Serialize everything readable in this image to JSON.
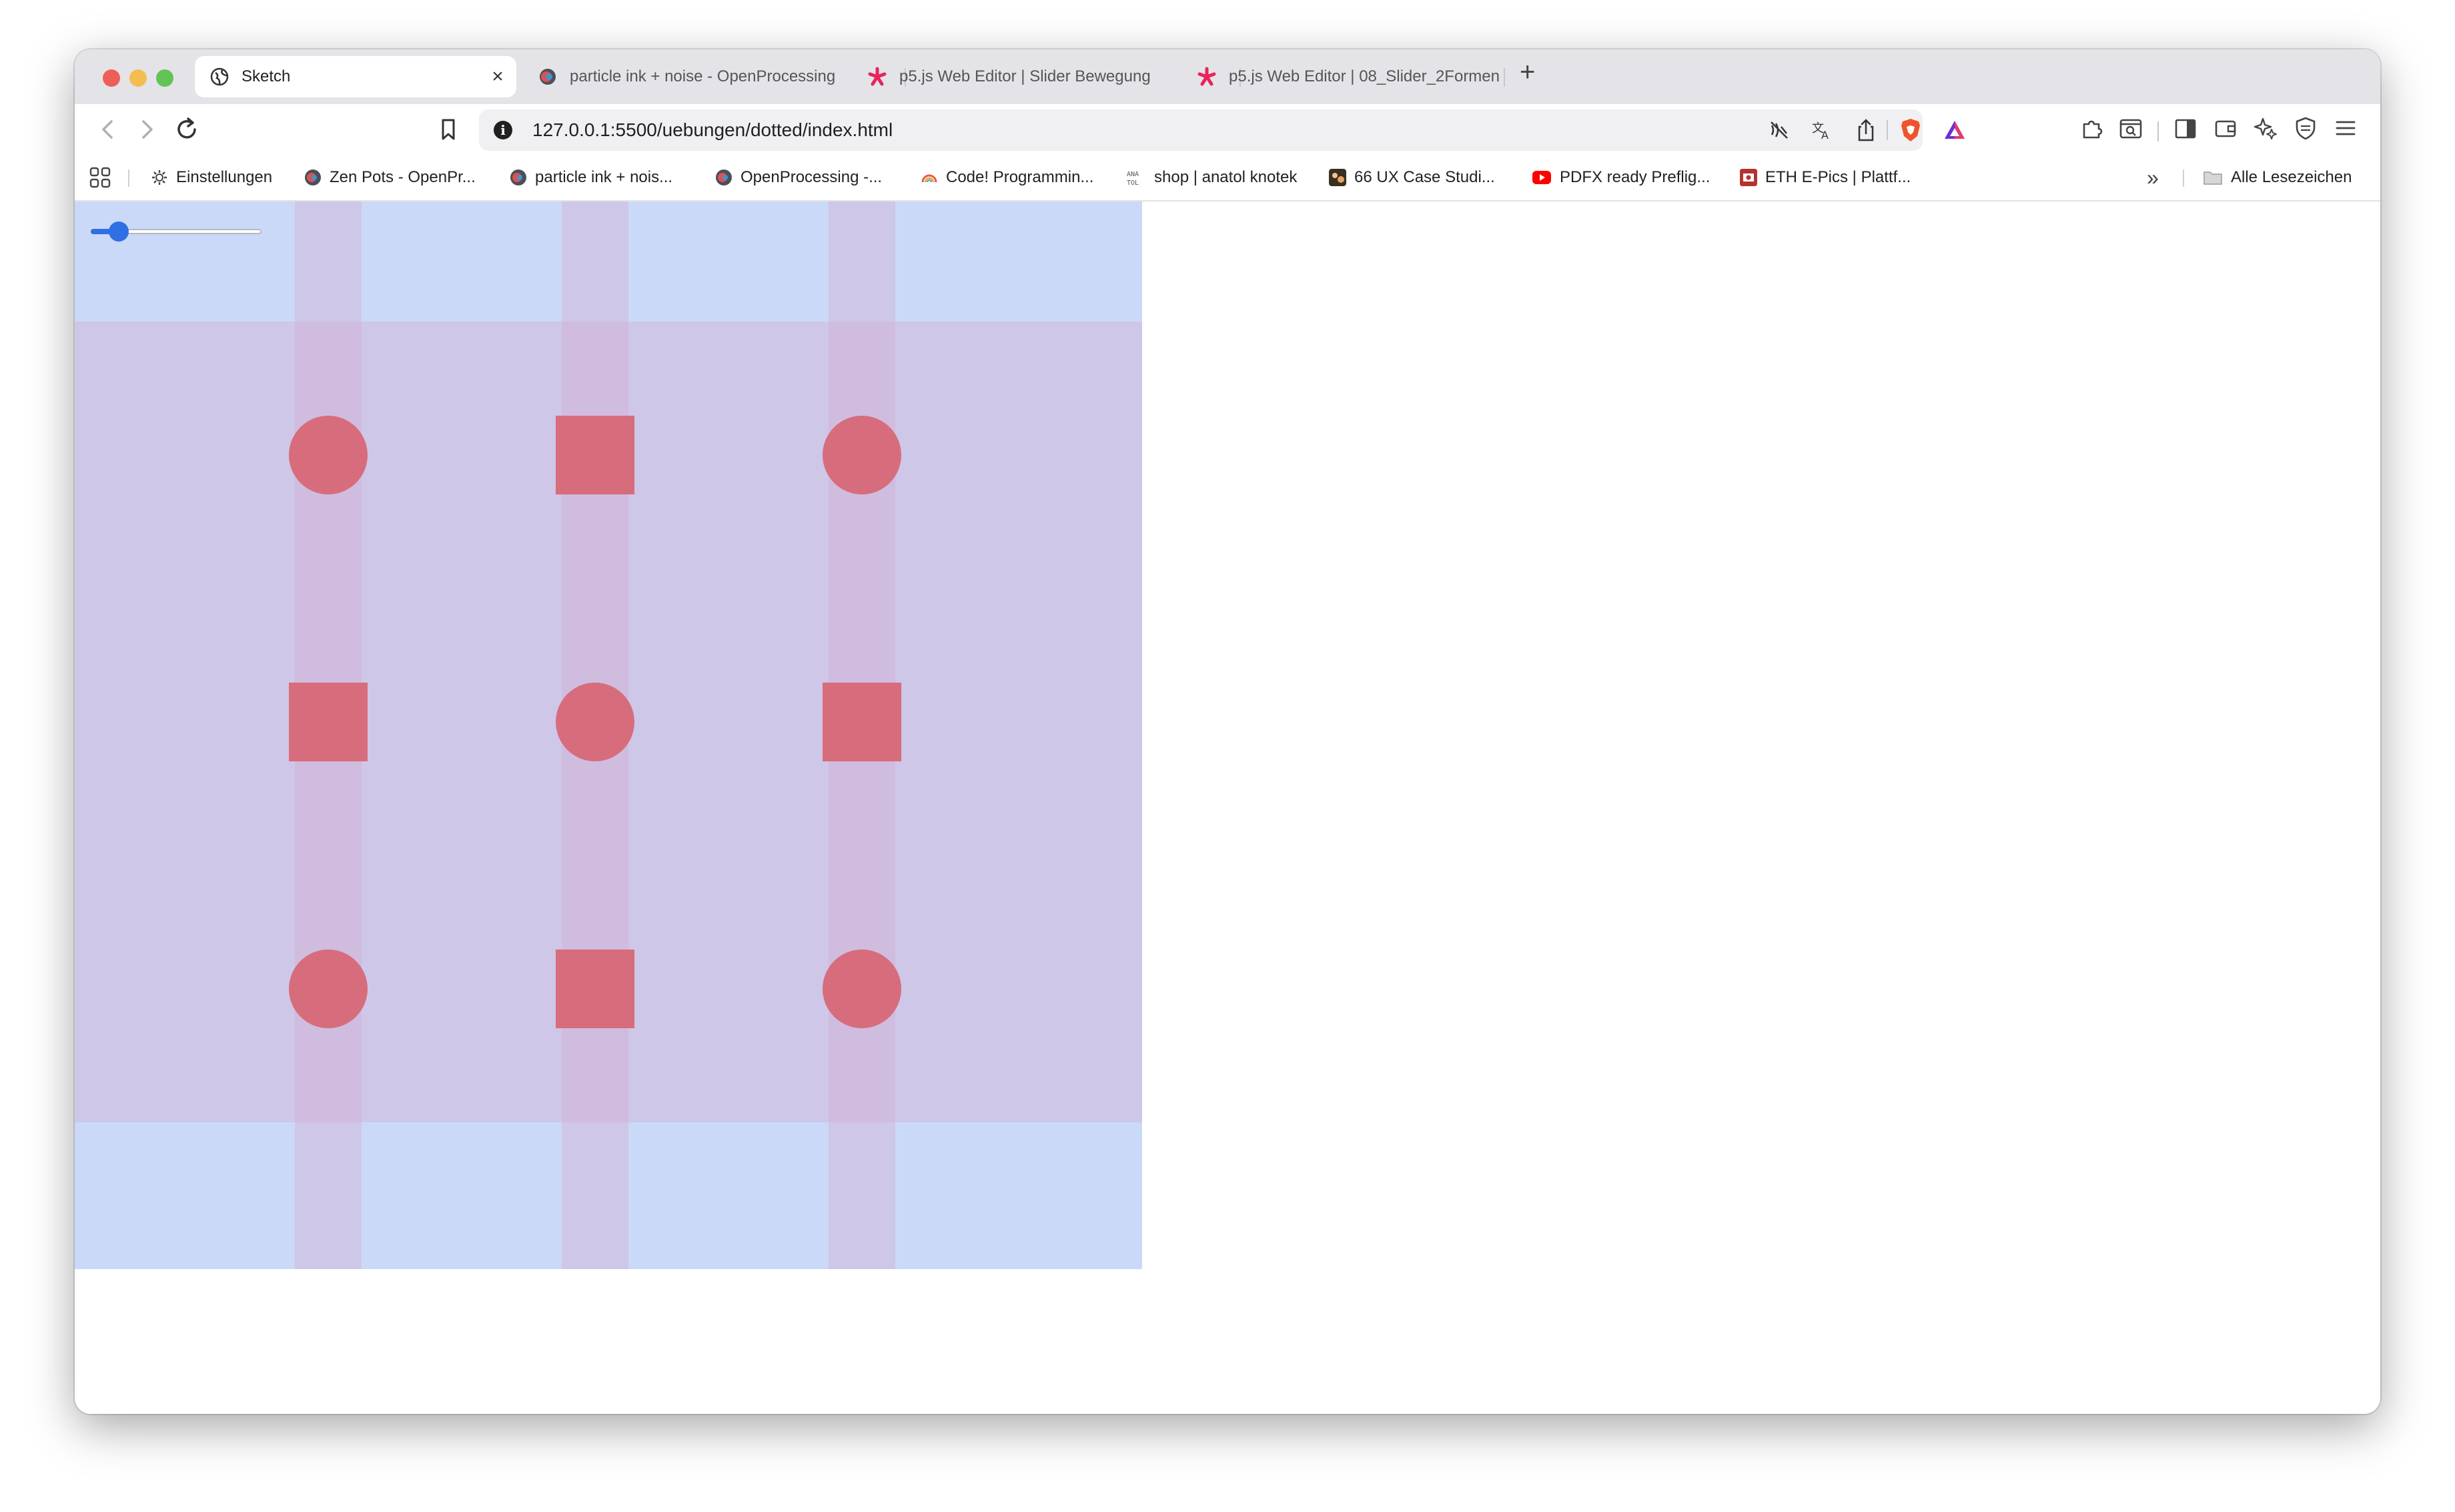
{
  "browser": {
    "tabs": [
      {
        "title": "Sketch",
        "active": true,
        "icon": "globe-icon"
      },
      {
        "title": "particle ink + noise - OpenProcessing",
        "active": false,
        "icon": "openprocessing-icon"
      },
      {
        "title": "p5.js Web Editor | Slider Bewegung",
        "active": false,
        "icon": "p5-asterisk-icon"
      },
      {
        "title": "p5.js Web Editor | 08_Slider_2Formen",
        "active": false,
        "icon": "p5-asterisk-icon"
      }
    ],
    "new_tab_label": "+",
    "close_label": "×",
    "url": "127.0.0.1:5500/uebungen/dotted/index.html",
    "bookmarks": [
      {
        "label": "Einstellungen",
        "icon": "gear-icon"
      },
      {
        "label": "Zen Pots - OpenPr...",
        "icon": "openprocessing-icon"
      },
      {
        "label": "particle ink + nois...",
        "icon": "openprocessing-icon"
      },
      {
        "label": "OpenProcessing -...",
        "icon": "openprocessing-icon"
      },
      {
        "label": "Code! Programmin...",
        "icon": "rainbow-icon"
      },
      {
        "label": "shop | anatol knotek",
        "icon": "anatol-icon"
      },
      {
        "label": "66 UX Case Studi...",
        "icon": "ux-icon"
      },
      {
        "label": "PDFX ready Preflig...",
        "icon": "youtube-icon"
      },
      {
        "label": "ETH E-Pics | Plattf...",
        "icon": "eth-icon"
      }
    ],
    "more_bookmarks_label": "»",
    "all_bookmarks_label": "Alle Lesezeichen"
  },
  "sketch": {
    "slider": {
      "min": 0,
      "max": 1,
      "value": 0.12
    },
    "grid": [
      [
        "circle",
        "square",
        "circle"
      ],
      [
        "square",
        "circle",
        "square"
      ],
      [
        "circle",
        "square",
        "circle"
      ]
    ],
    "colors": {
      "background": "#cad9f8",
      "band": "#d4aacc",
      "band_opacity": 0.38,
      "shape": "#d76d7c"
    }
  }
}
